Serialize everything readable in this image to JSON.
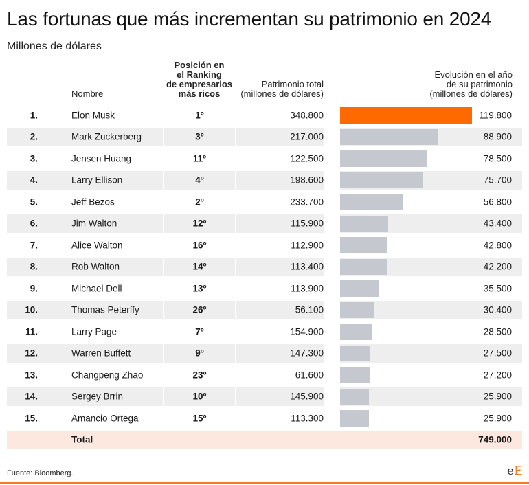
{
  "title": "Las fortunas que más incrementan su patrimonio en 2024",
  "subtitle": "Millones de dólares",
  "headers": {
    "name": "Nombre",
    "position": [
      "Posición en",
      "el Ranking",
      "de empresarios",
      "más ricos"
    ],
    "patrimony": [
      "Patrimonio total",
      "(millones de dólares)"
    ],
    "evolution": [
      "Evolución en el año",
      "de su patrimonio",
      "(millones de dólares)"
    ]
  },
  "colors": {
    "highlight": "#ff6a00",
    "bar": "#c5c9cf",
    "accent": "#f07a2a",
    "total_bg": "#fde8e0",
    "row_shade": "#eeeeee"
  },
  "chart_data": {
    "type": "table",
    "rows": [
      {
        "rank": "1.",
        "name": "Elon Musk",
        "position": "1º",
        "patrimony": "348.800",
        "evolution": 119800,
        "evolution_label": "119.800",
        "highlight": true
      },
      {
        "rank": "2.",
        "name": "Mark Zuckerberg",
        "position": "3º",
        "patrimony": "217.000",
        "evolution": 88900,
        "evolution_label": "88.900"
      },
      {
        "rank": "3.",
        "name": "Jensen Huang",
        "position": "11º",
        "patrimony": "122.500",
        "evolution": 78500,
        "evolution_label": "78.500"
      },
      {
        "rank": "4.",
        "name": "Larry Ellison",
        "position": "4º",
        "patrimony": "198.600",
        "evolution": 75700,
        "evolution_label": "75.700"
      },
      {
        "rank": "5.",
        "name": "Jeff Bezos",
        "position": "2º",
        "patrimony": "233.700",
        "evolution": 56800,
        "evolution_label": "56.800"
      },
      {
        "rank": "6.",
        "name": "Jim Walton",
        "position": "12º",
        "patrimony": "115.900",
        "evolution": 43400,
        "evolution_label": "43.400"
      },
      {
        "rank": "7.",
        "name": "Alice Walton",
        "position": "16º",
        "patrimony": "112.900",
        "evolution": 42800,
        "evolution_label": "42.800"
      },
      {
        "rank": "8.",
        "name": "Rob Walton",
        "position": "14º",
        "patrimony": "113.400",
        "evolution": 42200,
        "evolution_label": "42.200"
      },
      {
        "rank": "9.",
        "name": "Michael Dell",
        "position": "13º",
        "patrimony": "113.900",
        "evolution": 35500,
        "evolution_label": "35.500"
      },
      {
        "rank": "10.",
        "name": "Thomas Peterffy",
        "position": "26º",
        "patrimony": "56.100",
        "evolution": 30400,
        "evolution_label": "30.400"
      },
      {
        "rank": "11.",
        "name": "Larry Page",
        "position": "7º",
        "patrimony": "154.900",
        "evolution": 28500,
        "evolution_label": "28.500"
      },
      {
        "rank": "12.",
        "name": "Warren Buffett",
        "position": "9º",
        "patrimony": "147.300",
        "evolution": 27500,
        "evolution_label": "27.500"
      },
      {
        "rank": "13.",
        "name": "Changpeng Zhao",
        "position": "23º",
        "patrimony": "61.600",
        "evolution": 27200,
        "evolution_label": "27.200"
      },
      {
        "rank": "14.",
        "name": "Sergey Brrin",
        "position": "10º",
        "patrimony": "145.900",
        "evolution": 25900,
        "evolution_label": "25.900"
      },
      {
        "rank": "15.",
        "name": "Amancio Ortega",
        "position": "15º",
        "patrimony": "113.300",
        "evolution": 25900,
        "evolution_label": "25.900"
      }
    ],
    "total": {
      "label": "Total",
      "value": "749.000"
    },
    "evolution_max": 119800
  },
  "source": "Fuente: Bloomberg.",
  "logo": {
    "part1": "e",
    "part2": "E"
  }
}
